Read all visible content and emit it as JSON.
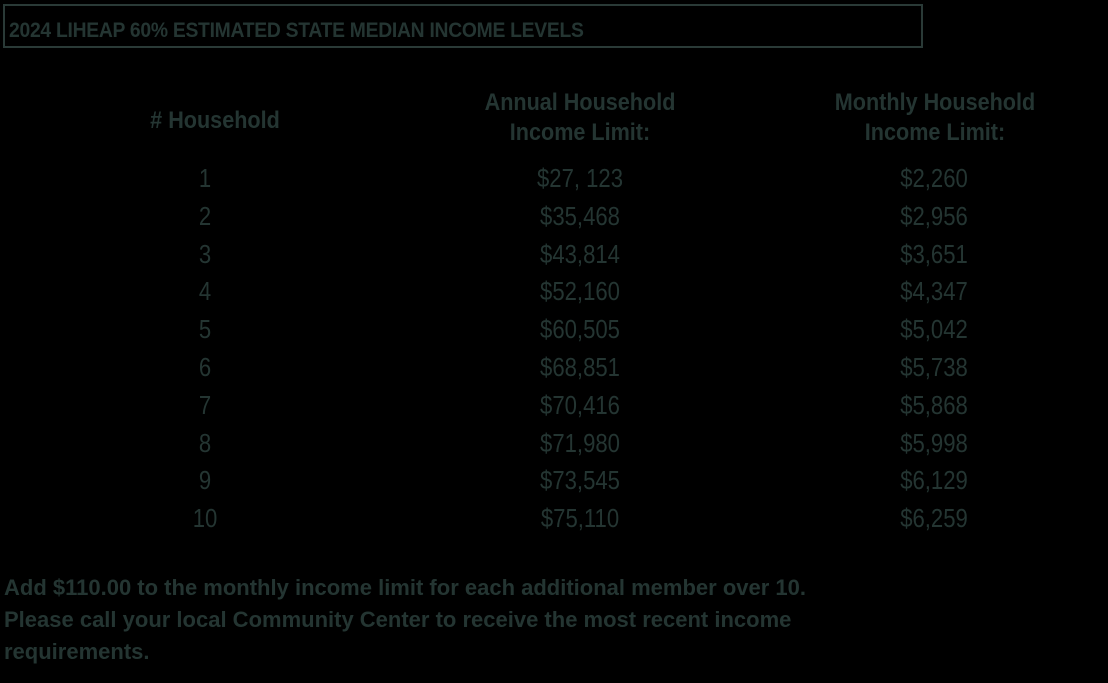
{
  "title": "2024 LIHEAP 60% ESTIMATED STATE MEDIAN INCOME LEVELS",
  "table": {
    "headers": {
      "household": "# Household",
      "annual_line1": "Annual Household",
      "annual_line2": "Income Limit:",
      "monthly_line1": "Monthly Household",
      "monthly_line2": "Income Limit:"
    },
    "rows": [
      {
        "size": "1",
        "annual": "$27, 123",
        "monthly": "$2,260"
      },
      {
        "size": "2",
        "annual": "$35,468",
        "monthly": "$2,956"
      },
      {
        "size": "3",
        "annual": "$43,814",
        "monthly": "$3,651"
      },
      {
        "size": "4",
        "annual": "$52,160",
        "monthly": "$4,347"
      },
      {
        "size": "5",
        "annual": "$60,505",
        "monthly": "$5,042"
      },
      {
        "size": "6",
        "annual": "$68,851",
        "monthly": "$5,738"
      },
      {
        "size": "7",
        "annual": "$70,416",
        "monthly": "$5,868"
      },
      {
        "size": "8",
        "annual": "$71,980",
        "monthly": "$5,998"
      },
      {
        "size": "9",
        "annual": "$73,545",
        "monthly": "$6,129"
      },
      {
        "size": "10",
        "annual": "$75,110",
        "monthly": "$6,259"
      }
    ]
  },
  "notes": {
    "line1": "Add $110.00 to the monthly income limit for each additional member over 10.",
    "line2": "Please call your local Community Center to receive the most recent income",
    "line3": "requirements."
  },
  "colors": {
    "background": "#000000",
    "text": "#243532",
    "border": "#2a3a37"
  }
}
